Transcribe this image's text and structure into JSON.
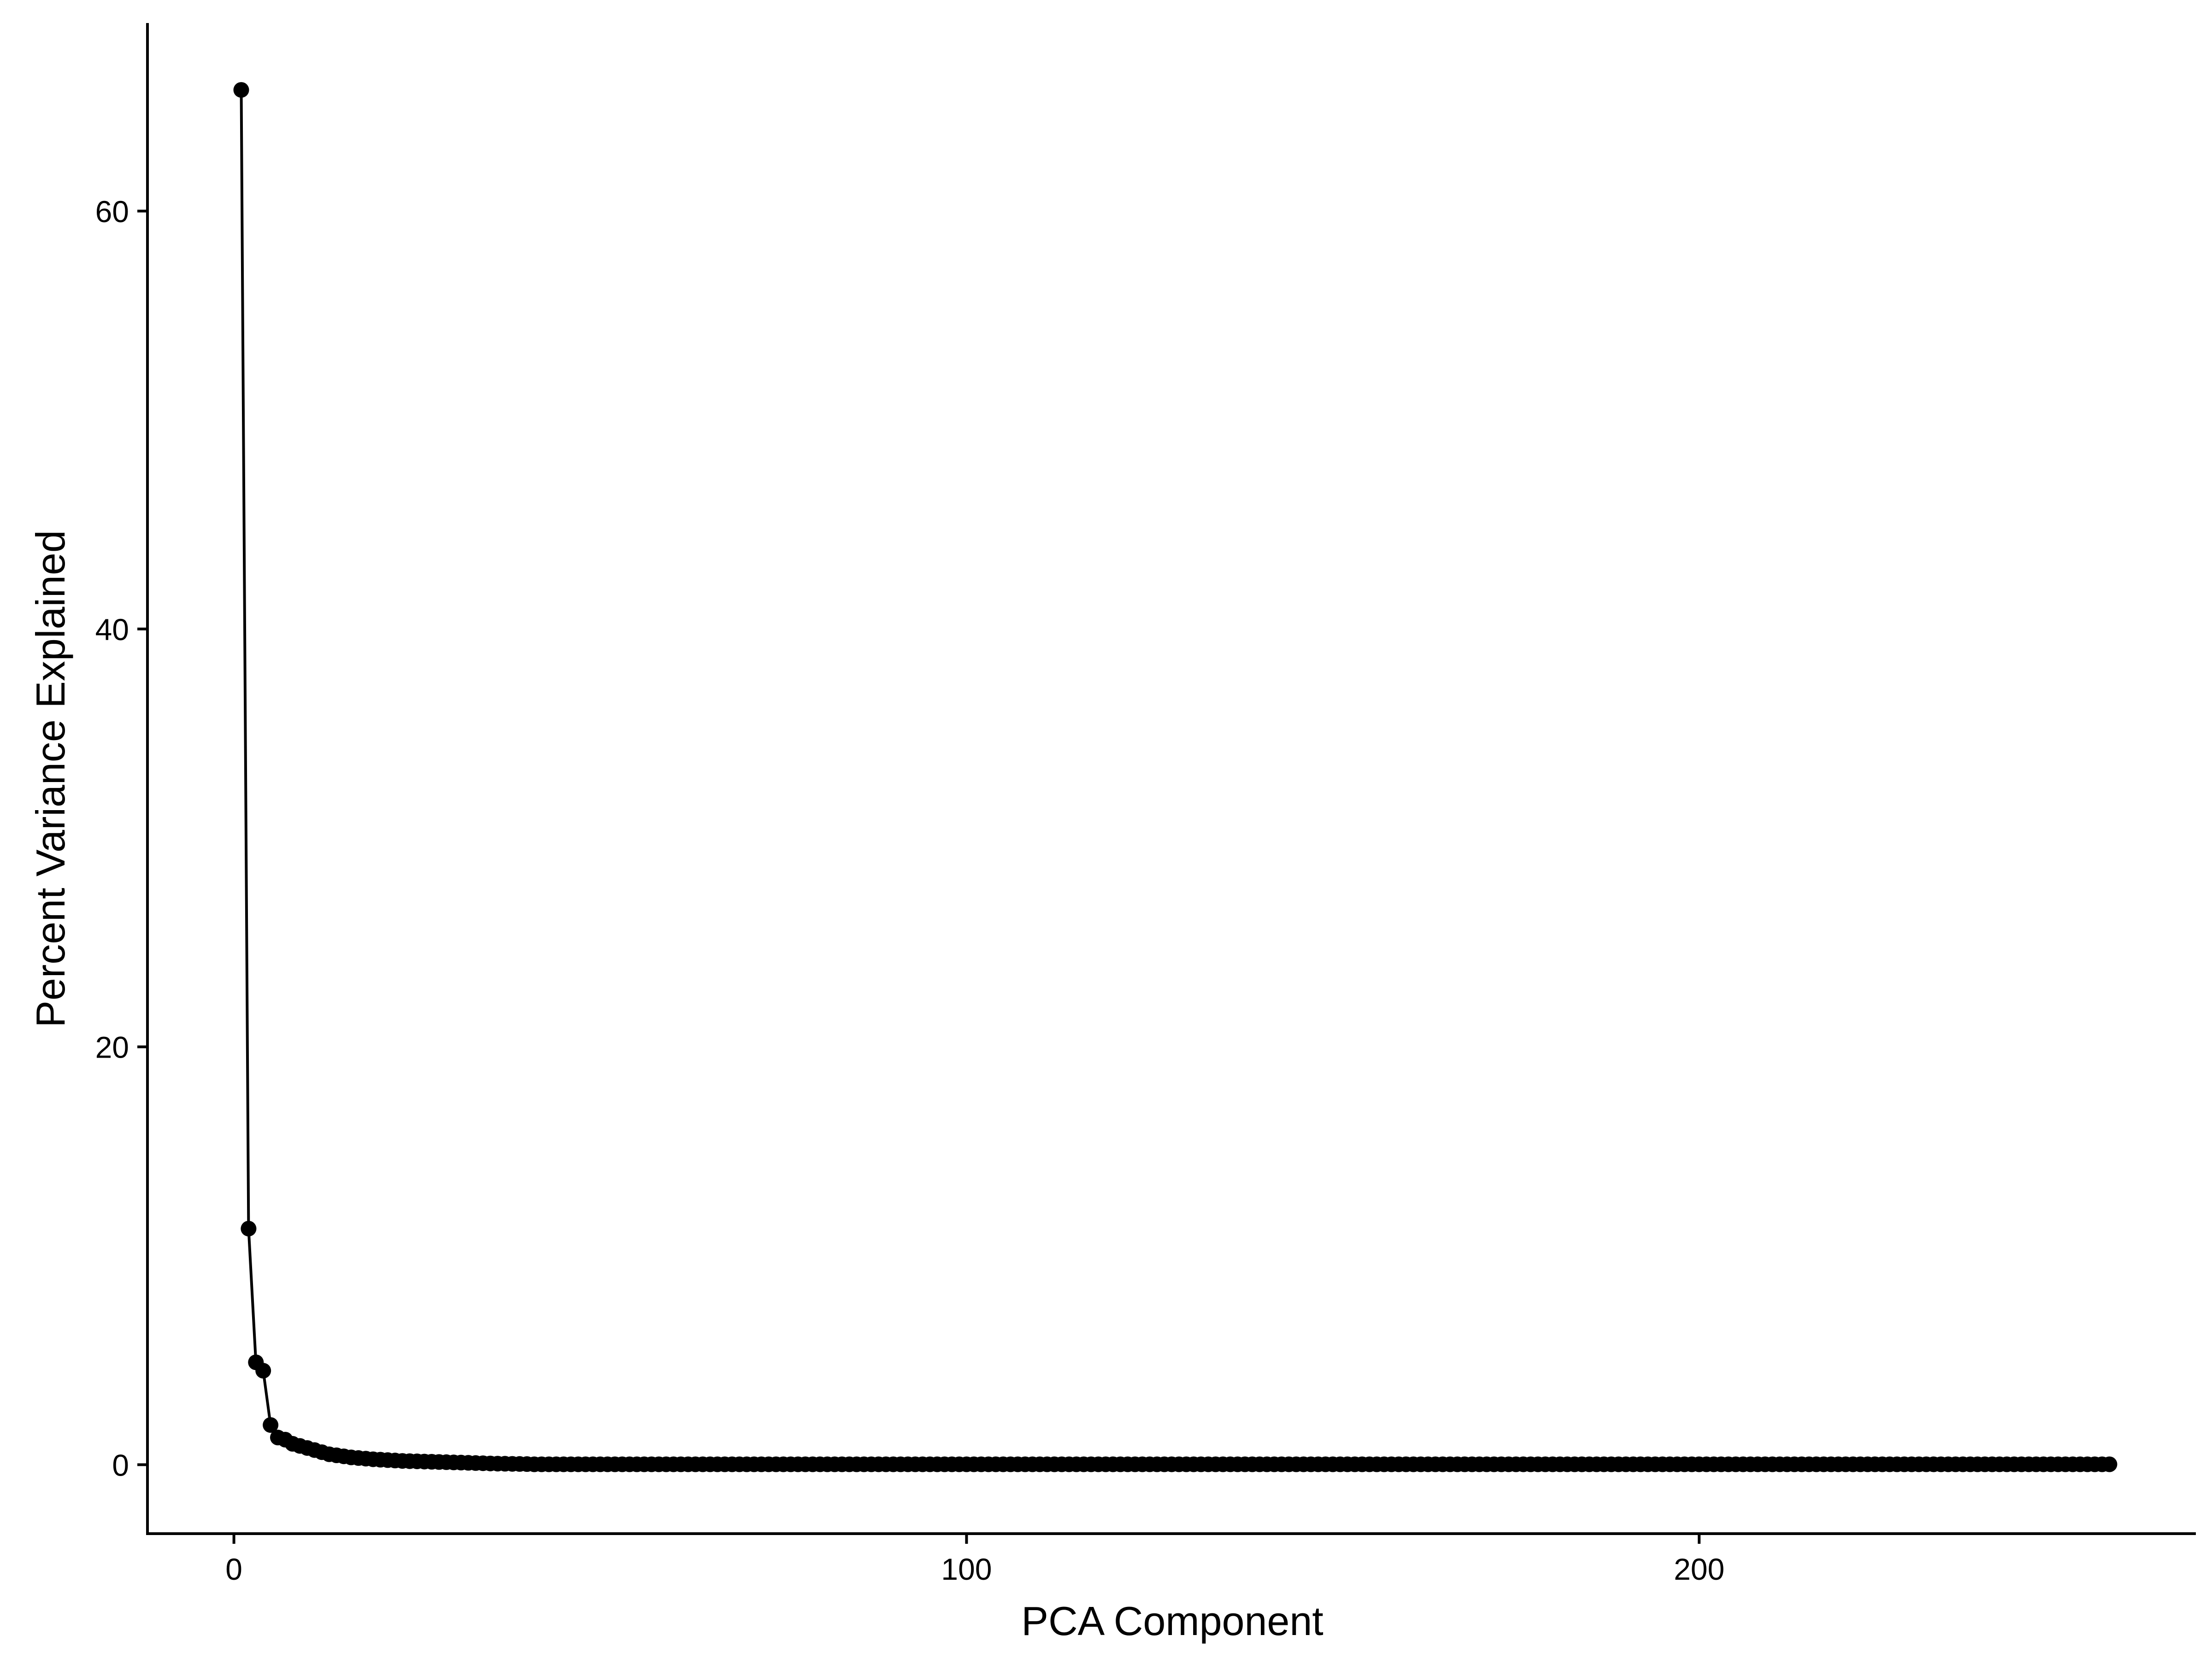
{
  "chart_data": {
    "type": "line",
    "title": "",
    "xlabel": "PCA Component",
    "ylabel": "Percent Variance Explained",
    "xlim": [
      -11.8,
      267.8
    ],
    "ylim": [
      -3.3,
      69.0
    ],
    "x_ticks": [
      0,
      100,
      200
    ],
    "x_tick_labels": [
      "0",
      "100",
      "200"
    ],
    "y_ticks": [
      0,
      20,
      40,
      60
    ],
    "y_tick_labels": [
      "0",
      "20",
      "40",
      "60"
    ],
    "grid": false,
    "legend": "none",
    "series": [
      {
        "name": "",
        "color": "#000000",
        "marker": "circle",
        "x_range": [
          1,
          256
        ],
        "head_values": [
          65.8,
          11.3,
          4.9,
          4.5,
          1.9,
          1.3,
          1.2,
          1.0,
          0.9,
          0.8,
          0.7,
          0.6,
          0.5,
          0.45,
          0.4,
          0.35,
          0.32,
          0.29,
          0.26,
          0.24,
          0.22,
          0.2,
          0.18,
          0.17,
          0.16,
          0.15,
          0.14,
          0.13,
          0.12,
          0.11,
          0.1,
          0.09,
          0.08,
          0.07,
          0.06,
          0.05,
          0.045,
          0.04,
          0.035,
          0.03
        ],
        "tail_value": 0.02
      }
    ]
  }
}
